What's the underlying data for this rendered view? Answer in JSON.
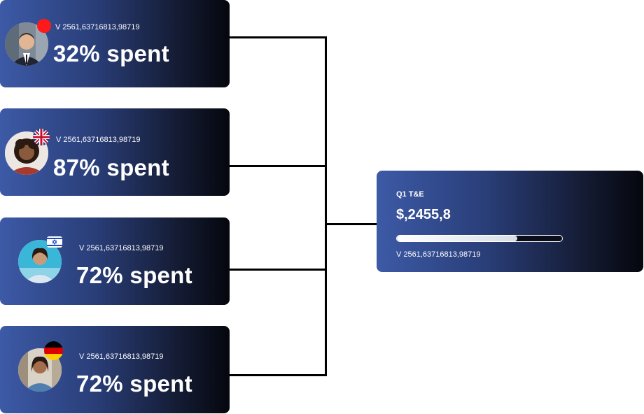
{
  "employees": [
    {
      "id": "1",
      "meta": "V 2561,63716813,98719",
      "spent": "32% spent",
      "flag_icon": "status-dot-icon"
    },
    {
      "id": "2",
      "meta": "V 2561,63716813,98719",
      "spent": "87% spent",
      "flag_icon": "uk-flag-icon"
    },
    {
      "id": "3",
      "meta": "V 2561,63716813,98719",
      "spent": "72% spent",
      "flag_icon": "israel-flag-icon"
    },
    {
      "id": "4",
      "meta": "V 2561,63716813,98719",
      "spent": "72% spent",
      "flag_icon": "germany-flag-icon"
    }
  ],
  "summary": {
    "title": "Q1 T&E",
    "amount": "$,2455,8",
    "progress": 0.73,
    "meta": "V 2561,63716813,98719"
  },
  "colors": {
    "card_start": "#3d5aa6",
    "card_end": "#05070d",
    "connector": "#000000",
    "status_dot": "#ff1a1a"
  }
}
